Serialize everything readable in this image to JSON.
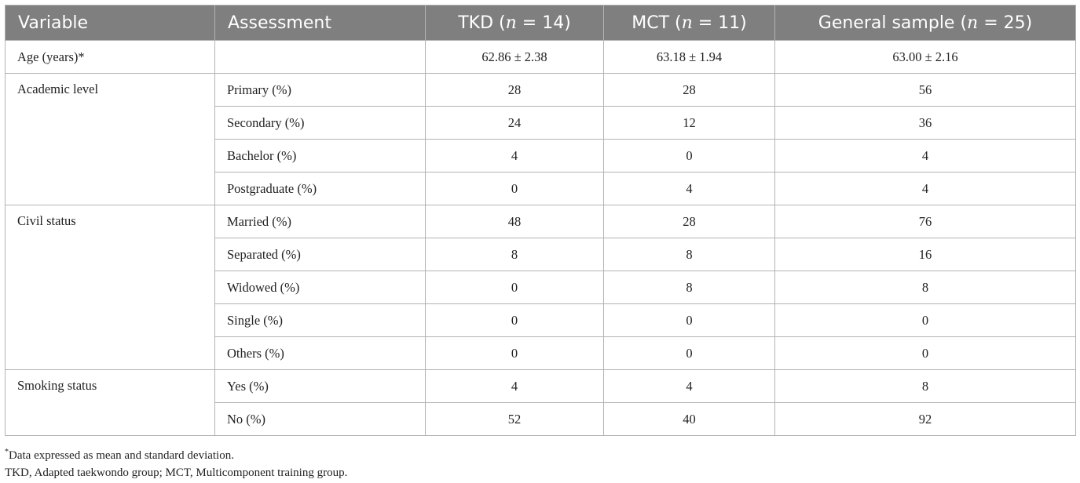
{
  "table": {
    "headers": {
      "variable": "Variable",
      "assessment": "Assessment",
      "tkd_prefix": "TKD (",
      "tkd_n": "n",
      "tkd_suffix": " = 14)",
      "mct_prefix": "MCT (",
      "mct_n": "n",
      "mct_suffix": " = 11)",
      "gen_prefix": "General sample (",
      "gen_n": "n",
      "gen_suffix": " = 25)"
    },
    "age": {
      "variable": "Age (years)*",
      "assessment": "",
      "tkd": "62.86 ± 2.38",
      "mct": "63.18 ± 1.94",
      "general": "63.00 ± 2.16"
    },
    "academic": {
      "variable": "Academic level",
      "rows": [
        {
          "assessment": "Primary (%)",
          "tkd": "28",
          "mct": "28",
          "general": "56"
        },
        {
          "assessment": "Secondary (%)",
          "tkd": "24",
          "mct": "12",
          "general": "36"
        },
        {
          "assessment": "Bachelor (%)",
          "tkd": "4",
          "mct": "0",
          "general": "4"
        },
        {
          "assessment": "Postgraduate (%)",
          "tkd": "0",
          "mct": "4",
          "general": "4"
        }
      ]
    },
    "civil": {
      "variable": "Civil status",
      "rows": [
        {
          "assessment": "Married (%)",
          "tkd": "48",
          "mct": "28",
          "general": "76"
        },
        {
          "assessment": "Separated (%)",
          "tkd": "8",
          "mct": "8",
          "general": "16"
        },
        {
          "assessment": "Widowed (%)",
          "tkd": "0",
          "mct": "8",
          "general": "8"
        },
        {
          "assessment": "Single (%)",
          "tkd": "0",
          "mct": "0",
          "general": "0"
        },
        {
          "assessment": "Others (%)",
          "tkd": "0",
          "mct": "0",
          "general": "0"
        }
      ]
    },
    "smoking": {
      "variable": "Smoking status",
      "rows": [
        {
          "assessment": "Yes (%)",
          "tkd": "4",
          "mct": "4",
          "general": "8"
        },
        {
          "assessment": "No (%)",
          "tkd": "52",
          "mct": "40",
          "general": "92"
        }
      ]
    }
  },
  "footnotes": {
    "mark": "*",
    "note1": "Data expressed as mean and standard deviation.",
    "note2": "TKD, Adapted taekwondo group; MCT, Multicomponent training group."
  }
}
